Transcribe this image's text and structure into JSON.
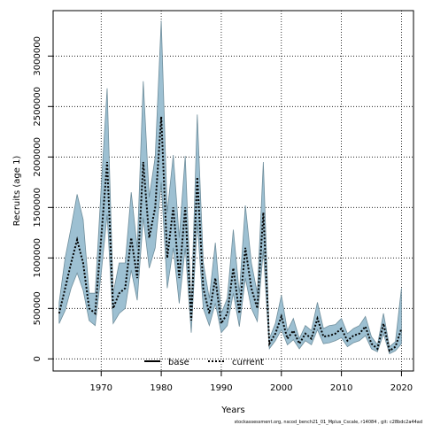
{
  "chart_data": {
    "type": "line",
    "xlabel": "Years",
    "ylabel": "Recruits (age 1)",
    "xlim": [
      1962,
      2022
    ],
    "ylim": [
      -120000,
      3450000
    ],
    "x_ticks": [
      1970,
      1980,
      1990,
      2000,
      2010,
      2020
    ],
    "y_ticks": [
      0,
      500000,
      1000000,
      1500000,
      2000000,
      2500000,
      3000000
    ],
    "grid": true,
    "legend_position": "bottom-center",
    "footnote": "stockassessment.org, nscod_bench21_01_Mplus_Cscale, r14084 , git: c28bdc2a44ad",
    "colors": {
      "band_fill": "#9dc0d2",
      "band_edge": "#6f8e9c",
      "line": "#000000"
    },
    "series": [
      {
        "name": "base",
        "style": "solid",
        "show_line": false
      },
      {
        "name": "current",
        "style": "dotted",
        "show_line": true
      }
    ],
    "x": [
      1963,
      1964,
      1965,
      1966,
      1967,
      1968,
      1969,
      1970,
      1971,
      1972,
      1973,
      1974,
      1975,
      1976,
      1977,
      1978,
      1979,
      1980,
      1981,
      1982,
      1983,
      1984,
      1985,
      1986,
      1987,
      1988,
      1989,
      1990,
      1991,
      1992,
      1993,
      1994,
      1995,
      1996,
      1997,
      1998,
      1999,
      2000,
      2001,
      2002,
      2003,
      2004,
      2005,
      2006,
      2007,
      2008,
      2009,
      2010,
      2011,
      2012,
      2013,
      2014,
      2015,
      2016,
      2017,
      2018,
      2019,
      2020
    ],
    "values": [
      450000,
      700000,
      950000,
      1180000,
      950000,
      500000,
      450000,
      1200000,
      1950000,
      500000,
      650000,
      700000,
      1200000,
      800000,
      1950000,
      1200000,
      1500000,
      2400000,
      1000000,
      1500000,
      800000,
      1500000,
      380000,
      1800000,
      700000,
      450000,
      800000,
      350000,
      450000,
      900000,
      450000,
      1100000,
      700000,
      500000,
      1450000,
      150000,
      250000,
      420000,
      200000,
      280000,
      150000,
      250000,
      200000,
      400000,
      220000,
      230000,
      250000,
      300000,
      180000,
      230000,
      250000,
      320000,
      150000,
      100000,
      350000,
      80000,
      120000,
      300000
    ],
    "upper": [
      560000,
      1000000,
      1300000,
      1630000,
      1380000,
      650000,
      650000,
      1700000,
      2680000,
      650000,
      950000,
      950000,
      1650000,
      1100000,
      2750000,
      1600000,
      2000000,
      3350000,
      1450000,
      2020000,
      1200000,
      2010000,
      500000,
      2420000,
      950000,
      600000,
      1150000,
      450000,
      600000,
      1280000,
      650000,
      1520000,
      950000,
      650000,
      1950000,
      200000,
      350000,
      630000,
      280000,
      400000,
      200000,
      330000,
      280000,
      560000,
      300000,
      330000,
      340000,
      400000,
      250000,
      300000,
      330000,
      420000,
      220000,
      140000,
      450000,
      120000,
      170000,
      700000
    ],
    "lower": [
      350000,
      480000,
      700000,
      850000,
      680000,
      380000,
      330000,
      850000,
      1430000,
      350000,
      450000,
      500000,
      880000,
      580000,
      1400000,
      900000,
      1100000,
      1750000,
      700000,
      1100000,
      550000,
      1100000,
      260000,
      1350000,
      500000,
      330000,
      550000,
      260000,
      330000,
      650000,
      320000,
      800000,
      500000,
      370000,
      1080000,
      100000,
      180000,
      290000,
      140000,
      190000,
      100000,
      180000,
      140000,
      290000,
      150000,
      160000,
      180000,
      210000,
      120000,
      160000,
      180000,
      230000,
      100000,
      70000,
      250000,
      50000,
      80000,
      150000
    ]
  }
}
